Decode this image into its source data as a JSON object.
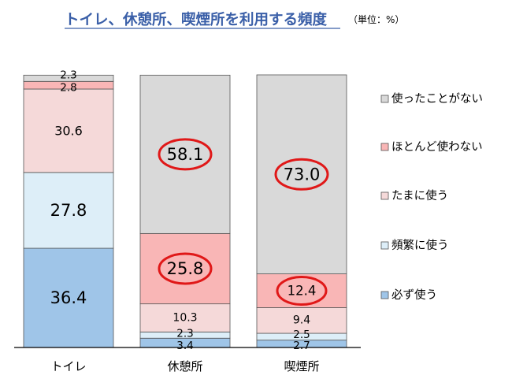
{
  "chart_data": {
    "type": "bar",
    "stacked": true,
    "percent_stacked": true,
    "title": "トイレ、休憩所、喫煙所を利用する頻度",
    "unit_note": "（単位：%）",
    "categories": [
      "トイレ",
      "休憩所",
      "喫煙所"
    ],
    "series": [
      {
        "name": "必ず使う",
        "values": [
          36.4,
          3.4,
          2.7
        ],
        "color": "#9fc5e8",
        "labels": [
          "36.4",
          "3.4",
          "2.7"
        ]
      },
      {
        "name": "頻繁に使う",
        "values": [
          27.8,
          2.3,
          2.5
        ],
        "color": "#ddeef8",
        "labels": [
          "27.8",
          "2.3",
          "2.5"
        ]
      },
      {
        "name": "たまに使う",
        "values": [
          30.6,
          10.3,
          9.4
        ],
        "color": "#f5d9d9",
        "labels": [
          "30.6",
          "10.3",
          "9.4"
        ]
      },
      {
        "name": "ほとんど使わない",
        "values": [
          2.8,
          25.8,
          12.4
        ],
        "color": "#f9b6b6",
        "labels": [
          "2.8",
          "25.8",
          "12.4"
        ]
      },
      {
        "name": "使ったことがない",
        "values": [
          2.3,
          58.1,
          73.0
        ],
        "color": "#d9d9d9",
        "labels": [
          "2.3",
          "58.1",
          "73.0"
        ]
      }
    ],
    "highlighted": [
      {
        "category_index": 1,
        "series_index": 3
      },
      {
        "category_index": 1,
        "series_index": 4
      },
      {
        "category_index": 2,
        "series_index": 3
      },
      {
        "category_index": 2,
        "series_index": 4
      }
    ],
    "ylim": [
      0,
      100
    ],
    "grid": false,
    "legend_position": "right",
    "colors": {
      "title": "#3a5fa8",
      "highlight": "#e01818",
      "border": "#555555"
    }
  }
}
